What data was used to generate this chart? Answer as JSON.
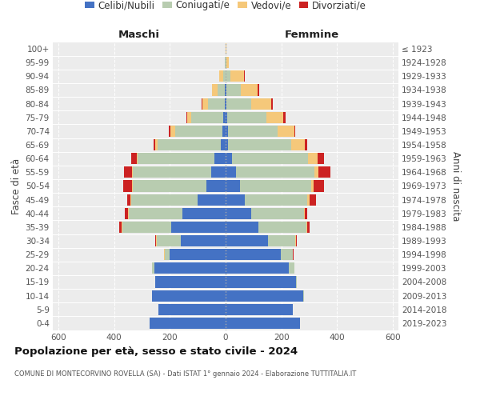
{
  "age_groups": [
    "0-4",
    "5-9",
    "10-14",
    "15-19",
    "20-24",
    "25-29",
    "30-34",
    "35-39",
    "40-44",
    "45-49",
    "50-54",
    "55-59",
    "60-64",
    "65-69",
    "70-74",
    "75-79",
    "80-84",
    "85-89",
    "90-94",
    "95-99",
    "100+"
  ],
  "birth_years": [
    "2019-2023",
    "2014-2018",
    "2009-2013",
    "2004-2008",
    "1999-2003",
    "1994-1998",
    "1989-1993",
    "1984-1988",
    "1979-1983",
    "1974-1978",
    "1969-1973",
    "1964-1968",
    "1959-1963",
    "1954-1958",
    "1949-1953",
    "1944-1948",
    "1939-1943",
    "1934-1938",
    "1929-1933",
    "1924-1928",
    "≤ 1923"
  ],
  "colors": {
    "celibe": "#4472C4",
    "coniugato": "#B8CCB0",
    "vedovo": "#F5C87A",
    "divorziato": "#CC2222"
  },
  "maschi": {
    "celibe": [
      272,
      242,
      265,
      252,
      255,
      200,
      160,
      195,
      155,
      100,
      68,
      52,
      40,
      18,
      12,
      8,
      4,
      2,
      0,
      0,
      0
    ],
    "coniugato": [
      0,
      0,
      0,
      2,
      8,
      18,
      88,
      175,
      192,
      238,
      265,
      280,
      275,
      225,
      170,
      115,
      58,
      28,
      8,
      2,
      0
    ],
    "vedovo": [
      0,
      0,
      0,
      0,
      2,
      2,
      2,
      3,
      4,
      4,
      4,
      5,
      5,
      10,
      16,
      14,
      22,
      18,
      14,
      2,
      0
    ],
    "divorziato": [
      0,
      0,
      0,
      0,
      0,
      0,
      3,
      8,
      10,
      12,
      30,
      28,
      18,
      5,
      5,
      5,
      3,
      2,
      2,
      0,
      0
    ]
  },
  "femmine": {
    "celibe": [
      268,
      242,
      278,
      252,
      228,
      198,
      152,
      118,
      92,
      68,
      52,
      38,
      22,
      10,
      8,
      5,
      3,
      2,
      0,
      0,
      0
    ],
    "coniugato": [
      0,
      0,
      2,
      4,
      18,
      42,
      98,
      172,
      188,
      225,
      255,
      280,
      275,
      225,
      180,
      140,
      88,
      52,
      18,
      4,
      0
    ],
    "vedovo": [
      0,
      0,
      0,
      0,
      2,
      2,
      2,
      3,
      4,
      8,
      10,
      14,
      32,
      48,
      58,
      62,
      72,
      62,
      48,
      8,
      2
    ],
    "divorziato": [
      0,
      0,
      0,
      0,
      0,
      2,
      4,
      8,
      10,
      22,
      35,
      45,
      25,
      10,
      5,
      8,
      5,
      5,
      2,
      0,
      0
    ]
  },
  "title": "Popolazione per età, sesso e stato civile - 2024",
  "subtitle": "COMUNE DI MONTECORVINO ROVELLA (SA) - Dati ISTAT 1° gennaio 2024 - Elaborazione TUTTITALIA.IT",
  "xlabel_maschi": "Maschi",
  "xlabel_femmine": "Femmine",
  "ylabel_left": "Fasce di età",
  "ylabel_right": "Anni di nascita",
  "xlim": 620,
  "background_color": "#ffffff",
  "plot_bg_color": "#ececec",
  "grid_color": "#ffffff",
  "legend_labels": [
    "Celibi/Nubili",
    "Coniugati/e",
    "Vedovi/e",
    "Divorziati/e"
  ]
}
